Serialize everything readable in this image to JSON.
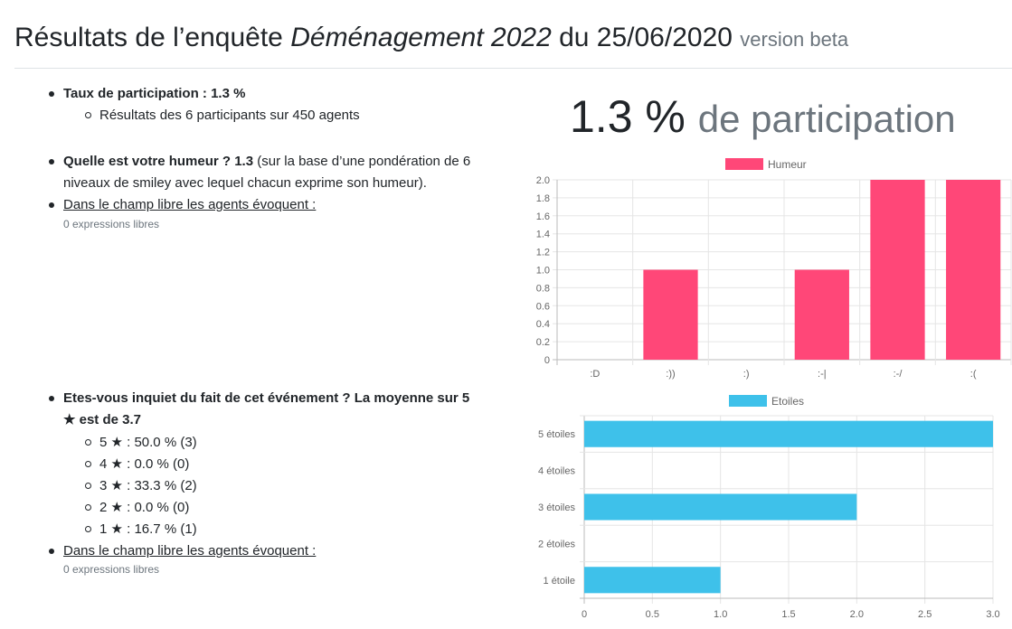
{
  "header": {
    "title_prefix": "Résultats de l’enquête",
    "title_survey": "Déménagement 2022",
    "title_date": "du 25/06/2020",
    "version": "version beta"
  },
  "participation": {
    "label": "Taux de participation : 1.3 %",
    "detail": "Résultats des 6 participants sur 450 agents",
    "big_value": "1.3 %",
    "big_label": "de participation"
  },
  "mood": {
    "question": "Quelle est votre humeur ? 1.3",
    "note_line1": "(sur la base d’une pondération de 6",
    "note_line2": "niveaux de smiley avec lequel chacun exprime son humeur).",
    "free_link": "Dans le champ libre les agents évoquent :",
    "free_count": "0 expressions libres"
  },
  "worry": {
    "question_line1": "Etes-vous inquiet du fait de cet événement ? La moyenne sur 5",
    "question_line2": "★ est de 3.7",
    "breakdown": [
      "5 ★ : 50.0 % (3)",
      "4 ★ : 0.0 % (0)",
      "3 ★ : 33.3 % (2)",
      "2 ★ : 0.0 % (0)",
      "1 ★ : 16.7 % (1)"
    ],
    "free_link": "Dans le champ libre les agents évoquent :",
    "free_count": "0 expressions libres"
  },
  "chart_data": [
    {
      "type": "bar",
      "orientation": "vertical",
      "legend_position": "top",
      "grid": true,
      "color": "#ff4778",
      "categories": [
        ":D",
        ":))",
        ":)",
        ":-|",
        ":-/",
        ":("
      ],
      "series": [
        {
          "name": "Humeur",
          "values": [
            0,
            1,
            0,
            1,
            2,
            2
          ]
        }
      ],
      "ylim": [
        0,
        2.0
      ],
      "yticks": [
        "0",
        "0.2",
        "0.4",
        "0.6",
        "0.8",
        "1.0",
        "1.2",
        "1.4",
        "1.6",
        "1.8",
        "2.0"
      ]
    },
    {
      "type": "bar",
      "orientation": "horizontal",
      "legend_position": "top",
      "grid": true,
      "color": "#3ec1ea",
      "categories": [
        "5 étoiles",
        "4 étoiles",
        "3 étoiles",
        "2 étoiles",
        "1 étoile"
      ],
      "series": [
        {
          "name": "Etoiles",
          "values": [
            3,
            0,
            2,
            0,
            1
          ]
        }
      ],
      "xlim": [
        0,
        3.0
      ],
      "xticks": [
        "0",
        "0.5",
        "1.0",
        "1.5",
        "2.0",
        "2.5",
        "3.0"
      ]
    }
  ]
}
